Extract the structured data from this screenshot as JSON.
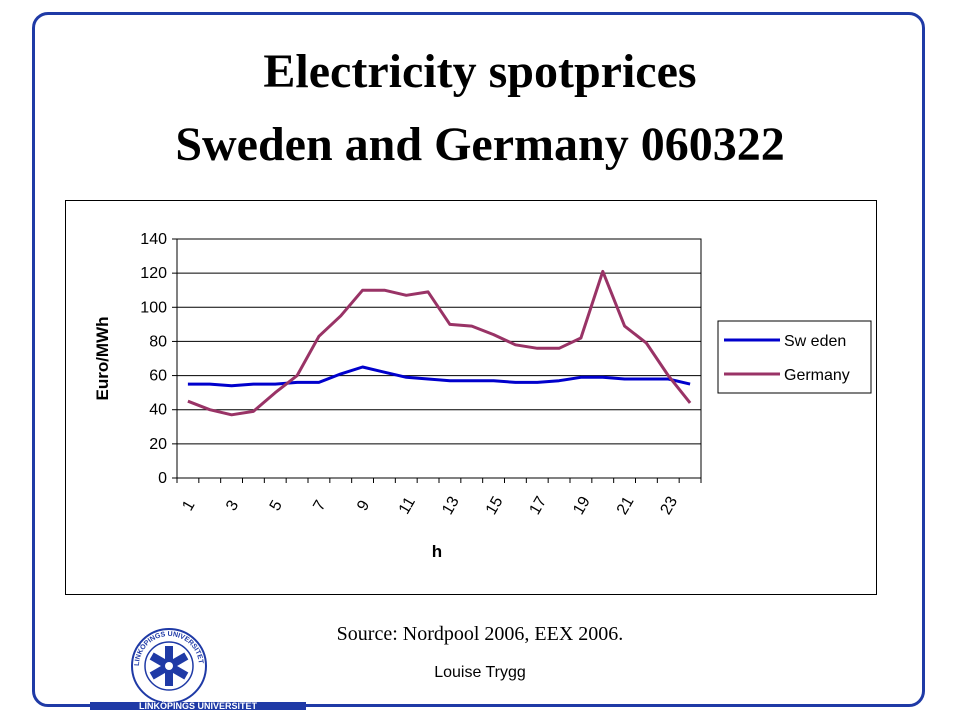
{
  "slide": {
    "title_line1": "Electricity spotprices",
    "title_line2": "Sweden and Germany  060322",
    "source": "Source: Nordpool 2006, EEX 2006.",
    "author": "Louise Trygg",
    "logo": {
      "name": "LINKÖPINGS UNIVERSITET",
      "ring_text": "LINKÖPINGS UNIVERSITET",
      "color": "#1f3aa6"
    },
    "frame_color": "#1f3aa6"
  },
  "chart_data": {
    "type": "line",
    "x": [
      1,
      2,
      3,
      4,
      5,
      6,
      7,
      8,
      9,
      10,
      11,
      12,
      13,
      14,
      15,
      16,
      17,
      18,
      19,
      20,
      21,
      22,
      23,
      24
    ],
    "x_tick_labels": [
      "1",
      "3",
      "5",
      "7",
      "9",
      "11",
      "13",
      "15",
      "17",
      "19",
      "21",
      "23"
    ],
    "series": [
      {
        "name": "Sw eden",
        "color": "#0000cc",
        "values": [
          55,
          55,
          54,
          55,
          55,
          56,
          56,
          61,
          65,
          62,
          59,
          58,
          57,
          57,
          57,
          56,
          56,
          57,
          59,
          59,
          58,
          58,
          58,
          55
        ]
      },
      {
        "name": "Germany",
        "color": "#993366",
        "values": [
          45,
          40,
          37,
          39,
          50,
          60,
          83,
          95,
          110,
          110,
          107,
          109,
          90,
          89,
          84,
          78,
          76,
          76,
          82,
          121,
          89,
          79,
          60,
          44
        ]
      }
    ],
    "xlabel": "h",
    "ylabel": "Euro/MWh",
    "ylim": [
      0,
      140
    ],
    "yticks": [
      0,
      20,
      40,
      60,
      80,
      100,
      120,
      140
    ],
    "grid": "horizontal",
    "legend": "right"
  }
}
